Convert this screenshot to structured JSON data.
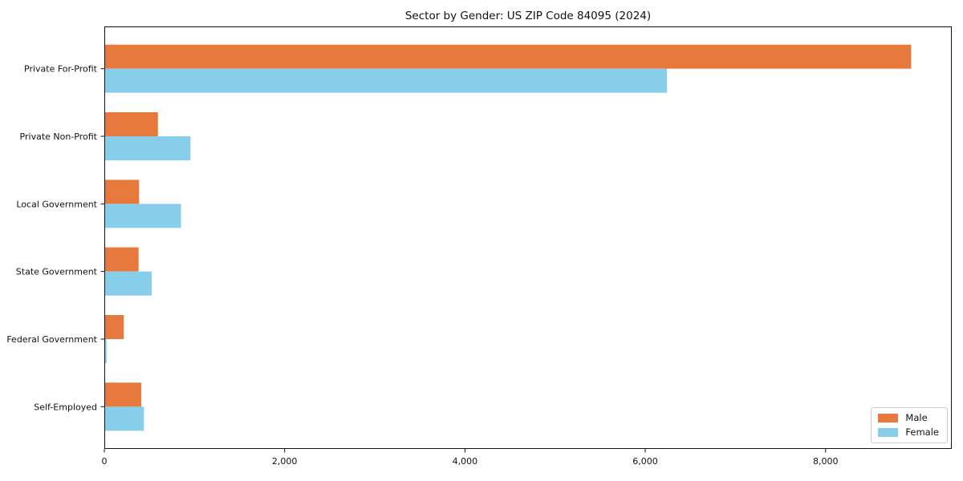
{
  "chart_data": {
    "type": "bar",
    "orientation": "horizontal",
    "title": "Sector by Gender: US ZIP Code 84095 (2024)",
    "xlabel": "",
    "ylabel": "",
    "categories": [
      "Private For-Profit",
      "Private Non-Profit",
      "Local Government",
      "State Government",
      "Federal Government",
      "Self-Employed"
    ],
    "series": [
      {
        "name": "Male",
        "color": "#E8793C",
        "values": [
          8950,
          595,
          385,
          380,
          215,
          410
        ]
      },
      {
        "name": "Female",
        "color": "#87CEEB",
        "values": [
          6240,
          955,
          850,
          525,
          25,
          440
        ]
      }
    ],
    "xlim": [
      0,
      9400
    ],
    "xticks": [
      0,
      2000,
      4000,
      6000,
      8000
    ],
    "xtick_labels": [
      "0",
      "2,000",
      "4,000",
      "6,000",
      "8,000"
    ],
    "grid": false,
    "legend": {
      "position": "lower right",
      "entries": [
        "Male",
        "Female"
      ]
    },
    "axis_color": "#111111",
    "background_color": "#ffffff"
  }
}
